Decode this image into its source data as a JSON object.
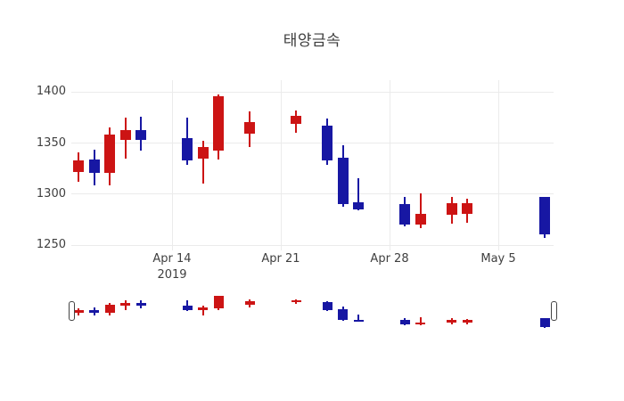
{
  "title": "태양금속",
  "colors": {
    "increasing": "#cc1414",
    "decreasing": "#1717a3",
    "grid": "#ebebeb",
    "text": "#3f3f3f"
  },
  "chart_data": {
    "type": "candlestick",
    "title": "태양금속",
    "xlabel": "",
    "ylabel": "",
    "grid": true,
    "legend": false,
    "ylim": [
      1245,
      1412
    ],
    "yticks": [
      1250,
      1300,
      1350,
      1400
    ],
    "xticks": [
      {
        "label": "Apr 14",
        "sublabel": "2019",
        "date": "2019-04-14"
      },
      {
        "label": "Apr 21",
        "sublabel": "",
        "date": "2019-04-21"
      },
      {
        "label": "Apr 28",
        "sublabel": "",
        "date": "2019-04-28"
      },
      {
        "label": "May 5",
        "sublabel": "",
        "date": "2019-05-05"
      }
    ],
    "rangeslider": true,
    "candles": [
      {
        "date": "2019-04-08",
        "open": 1322,
        "high": 1341,
        "low": 1312,
        "close": 1333
      },
      {
        "date": "2019-04-09",
        "open": 1334,
        "high": 1344,
        "low": 1309,
        "close": 1321
      },
      {
        "date": "2019-04-10",
        "open": 1321,
        "high": 1365,
        "low": 1309,
        "close": 1358
      },
      {
        "date": "2019-04-11",
        "open": 1353,
        "high": 1375,
        "low": 1335,
        "close": 1363
      },
      {
        "date": "2019-04-12",
        "open": 1363,
        "high": 1376,
        "low": 1343,
        "close": 1353
      },
      {
        "date": "2019-04-15",
        "open": 1355,
        "high": 1375,
        "low": 1329,
        "close": 1333
      },
      {
        "date": "2019-04-16",
        "open": 1335,
        "high": 1352,
        "low": 1310,
        "close": 1346
      },
      {
        "date": "2019-04-17",
        "open": 1343,
        "high": 1398,
        "low": 1334,
        "close": 1396
      },
      {
        "date": "2019-04-19",
        "open": 1359,
        "high": 1381,
        "low": 1346,
        "close": 1371
      },
      {
        "date": "2019-04-22",
        "open": 1369,
        "high": 1382,
        "low": 1360,
        "close": 1377
      },
      {
        "date": "2019-04-24",
        "open": 1367,
        "high": 1374,
        "low": 1329,
        "close": 1333
      },
      {
        "date": "2019-04-25",
        "open": 1336,
        "high": 1348,
        "low": 1288,
        "close": 1290
      },
      {
        "date": "2019-04-26",
        "open": 1292,
        "high": 1316,
        "low": 1284,
        "close": 1285
      },
      {
        "date": "2019-04-29",
        "open": 1290,
        "high": 1297,
        "low": 1269,
        "close": 1270
      },
      {
        "date": "2019-04-30",
        "open": 1270,
        "high": 1301,
        "low": 1267,
        "close": 1281
      },
      {
        "date": "2019-05-02",
        "open": 1280,
        "high": 1297,
        "low": 1271,
        "close": 1291
      },
      {
        "date": "2019-05-03",
        "open": 1281,
        "high": 1296,
        "low": 1272,
        "close": 1291
      },
      {
        "date": "2019-05-08",
        "open": 1297,
        "high": 1297,
        "low": 1257,
        "close": 1261
      }
    ]
  }
}
